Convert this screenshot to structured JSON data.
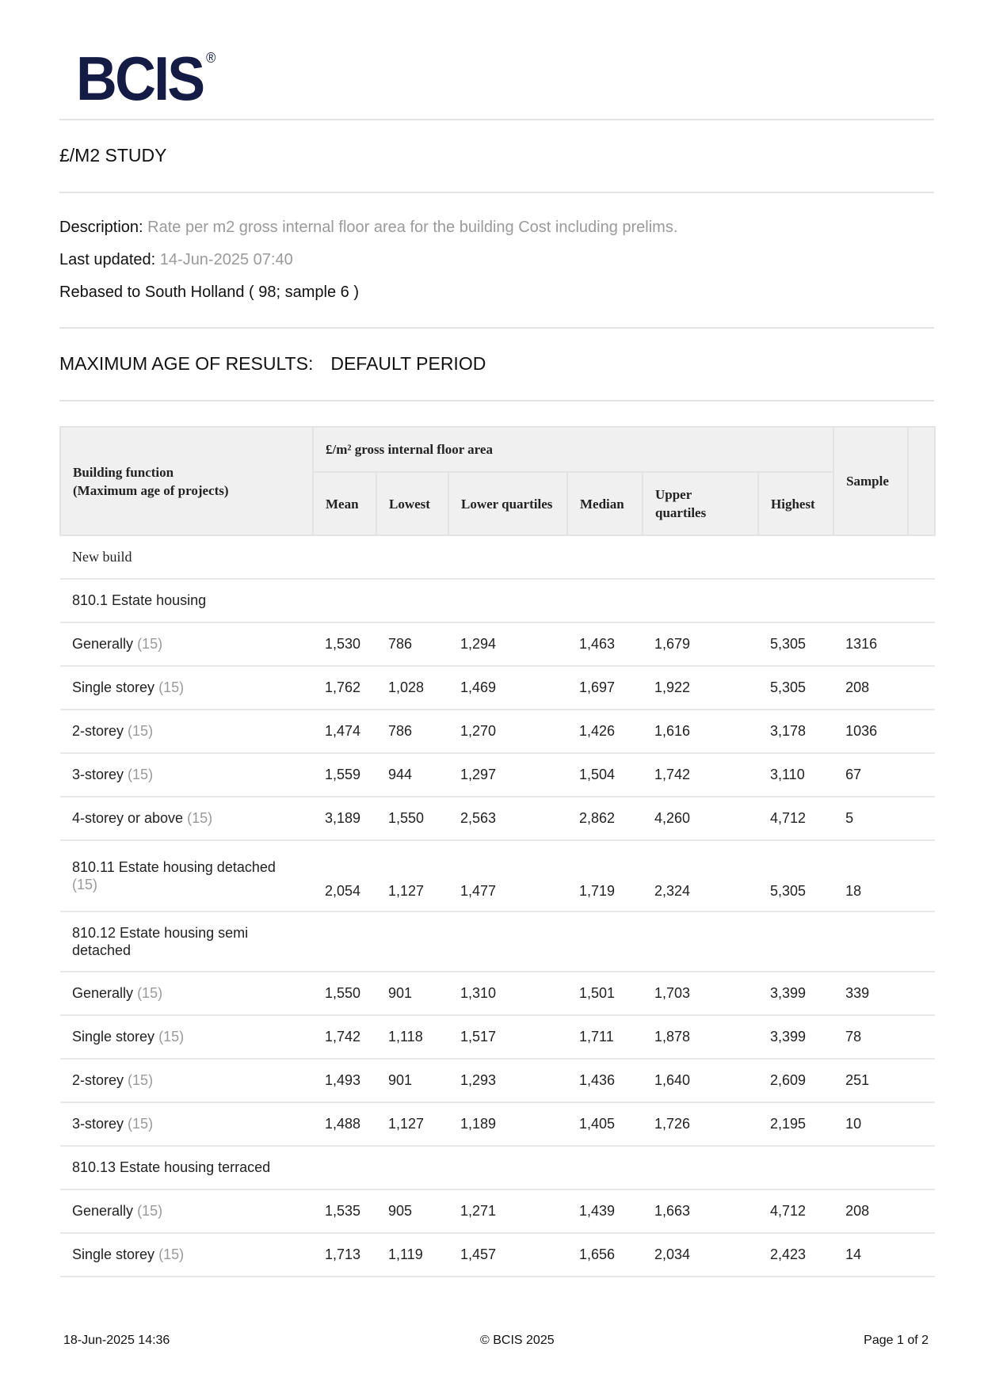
{
  "logo": {
    "text": "BCIS",
    "mark": "®"
  },
  "title": "£/M2 STUDY",
  "description": {
    "label": "Description:",
    "value": "Rate per m2 gross internal floor area for the building Cost including prelims."
  },
  "last_updated": {
    "label": "Last updated:",
    "value": "14-Jun-2025 07:40"
  },
  "rebased": "Rebased to South Holland ( 98; sample 6 )",
  "max_age": {
    "label": "MAXIMUM AGE OF RESULTS:",
    "value": "DEFAULT PERIOD"
  },
  "table": {
    "col_function_line1": "Building function",
    "col_function_line2": "(Maximum age of projects)",
    "group_header": "£/m² gross internal floor area",
    "columns": [
      "Mean",
      "Lowest",
      "Lower quartiles",
      "Median",
      "Upper quartiles",
      "Highest"
    ],
    "col_sample": "Sample",
    "rows": [
      {
        "type": "section",
        "label": "New build"
      },
      {
        "type": "group",
        "label": "810.1 Estate housing"
      },
      {
        "type": "data",
        "label": "Generally",
        "age": "(15)",
        "values": [
          "1,530",
          "786",
          "1,294",
          "1,463",
          "1,679",
          "5,305",
          "1316"
        ]
      },
      {
        "type": "data",
        "label": "Single storey",
        "age": "(15)",
        "values": [
          "1,762",
          "1,028",
          "1,469",
          "1,697",
          "1,922",
          "5,305",
          "208"
        ]
      },
      {
        "type": "data",
        "label": "2-storey",
        "age": "(15)",
        "values": [
          "1,474",
          "786",
          "1,270",
          "1,426",
          "1,616",
          "3,178",
          "1036"
        ]
      },
      {
        "type": "data",
        "label": "3-storey",
        "age": "(15)",
        "values": [
          "1,559",
          "944",
          "1,297",
          "1,504",
          "1,742",
          "3,110",
          "67"
        ]
      },
      {
        "type": "data",
        "label": "4-storey or above",
        "age": "(15)",
        "values": [
          "3,189",
          "1,550",
          "2,563",
          "2,862",
          "4,260",
          "4,712",
          "5"
        ]
      },
      {
        "type": "data2",
        "label": "810.11 Estate housing detached",
        "age": "(15)",
        "values": [
          "2,054",
          "1,127",
          "1,477",
          "1,719",
          "2,324",
          "5,305",
          "18"
        ]
      },
      {
        "type": "group2",
        "label": "810.12 Estate housing semi detached"
      },
      {
        "type": "data",
        "label": "Generally",
        "age": "(15)",
        "values": [
          "1,550",
          "901",
          "1,310",
          "1,501",
          "1,703",
          "3,399",
          "339"
        ]
      },
      {
        "type": "data",
        "label": "Single storey",
        "age": "(15)",
        "values": [
          "1,742",
          "1,118",
          "1,517",
          "1,711",
          "1,878",
          "3,399",
          "78"
        ]
      },
      {
        "type": "data",
        "label": "2-storey",
        "age": "(15)",
        "values": [
          "1,493",
          "901",
          "1,293",
          "1,436",
          "1,640",
          "2,609",
          "251"
        ]
      },
      {
        "type": "data",
        "label": "3-storey",
        "age": "(15)",
        "values": [
          "1,488",
          "1,127",
          "1,189",
          "1,405",
          "1,726",
          "2,195",
          "10"
        ]
      },
      {
        "type": "group",
        "label": "810.13 Estate housing terraced"
      },
      {
        "type": "data",
        "label": "Generally",
        "age": "(15)",
        "values": [
          "1,535",
          "905",
          "1,271",
          "1,439",
          "1,663",
          "4,712",
          "208"
        ]
      },
      {
        "type": "data",
        "label": "Single storey",
        "age": "(15)",
        "values": [
          "1,713",
          "1,119",
          "1,457",
          "1,656",
          "2,034",
          "2,423",
          "14"
        ]
      }
    ]
  },
  "footer": {
    "printed": "18-Jun-2025 14:36",
    "copyright": "© BCIS 2025",
    "page": "Page 1 of 2"
  }
}
